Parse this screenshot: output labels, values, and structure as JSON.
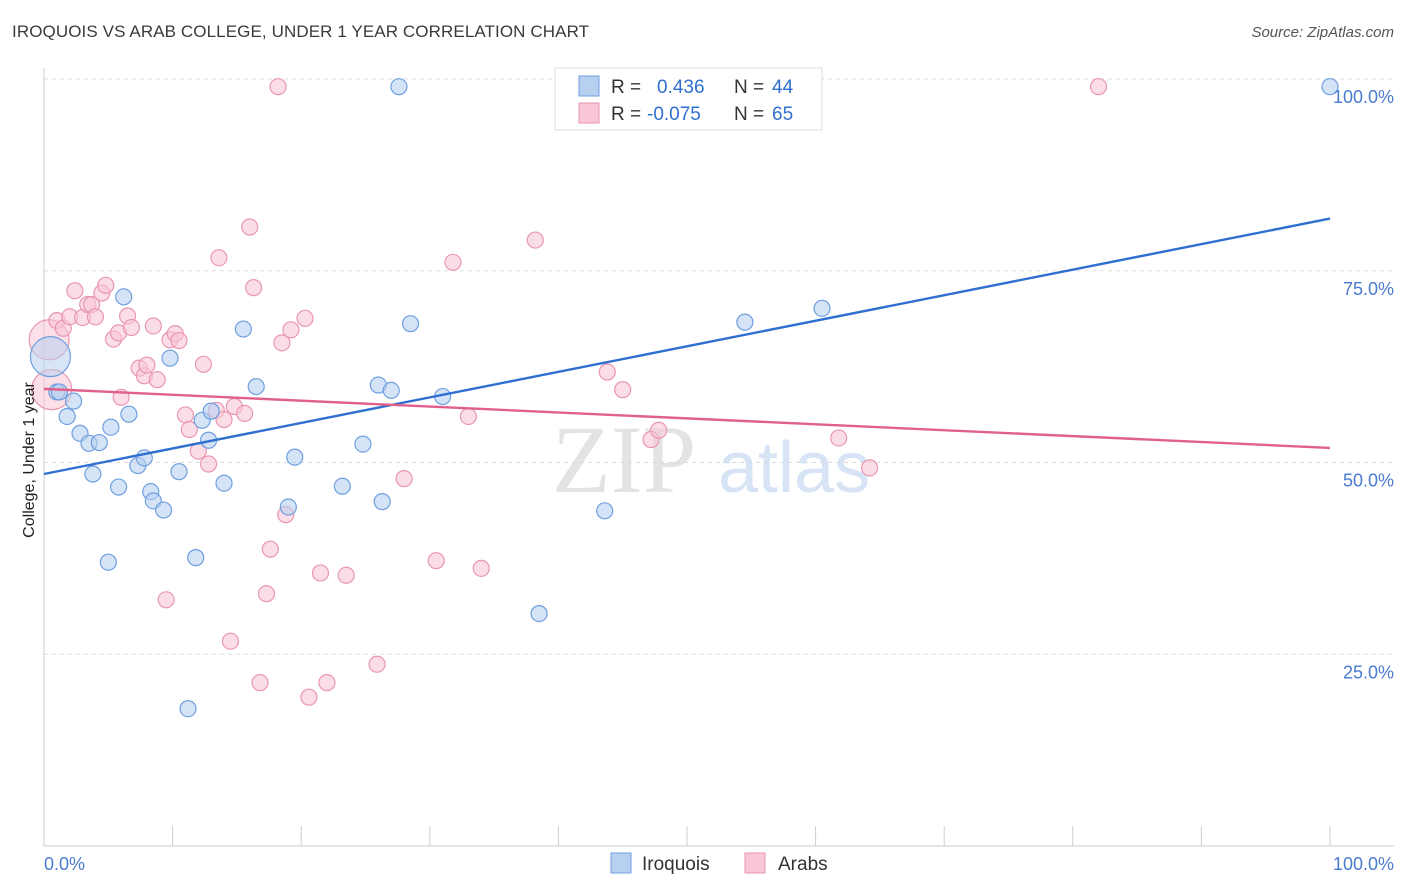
{
  "title": "IROQUOIS VS ARAB COLLEGE, UNDER 1 YEAR CORRELATION CHART",
  "source": "Source: ZipAtlas.com",
  "watermark": {
    "zip": "ZIP",
    "atlas": "atlas"
  },
  "colors": {
    "iroquois_fill": "#b8d0f0",
    "iroquois_stroke": "#6f9fe0",
    "iroquois_line": "#2f6fd0",
    "arabs_fill": "#f8c6d6",
    "arabs_stroke": "#e996b2",
    "arabs_line": "#e0608a",
    "grid": "#dddddd",
    "tick_text": "#4a7bd0"
  },
  "legend": {
    "rows": [
      {
        "r_label": "R =",
        "r_value": "0.436",
        "n_label": "N =",
        "n_value": "44",
        "series": "iroquois"
      },
      {
        "r_label": "R =",
        "r_value": "-0.075",
        "n_label": "N =",
        "n_value": "65",
        "series": "arabs"
      }
    ]
  },
  "bottom_legend": [
    "Iroquois",
    "Arabs"
  ],
  "chart_data": {
    "type": "scatter",
    "title": "IROQUOIS VS ARAB COLLEGE, UNDER 1 YEAR CORRELATION CHART",
    "xlabel": "",
    "ylabel": "College, Under 1 year",
    "xlim": [
      0,
      100
    ],
    "ylim": [
      0,
      100
    ],
    "x_tick_labels": [
      "0.0%",
      "100.0%"
    ],
    "y_tick_labels": [
      "25.0%",
      "50.0%",
      "75.0%",
      "100.0%"
    ],
    "y_ticks": [
      25,
      50,
      75,
      100
    ],
    "grid": true,
    "series": [
      {
        "name": "Iroquois",
        "r": 0.436,
        "n": 44,
        "trend": {
          "x": [
            0,
            100
          ],
          "y": [
            48.5,
            81.8
          ]
        },
        "points": [
          {
            "x": 0.5,
            "y": 63.8,
            "big": true
          },
          {
            "x": 1.0,
            "y": 59.2
          },
          {
            "x": 1.8,
            "y": 56.0
          },
          {
            "x": 2.3,
            "y": 58.0
          },
          {
            "x": 2.8,
            "y": 53.8
          },
          {
            "x": 3.5,
            "y": 52.5
          },
          {
            "x": 3.8,
            "y": 48.5
          },
          {
            "x": 4.3,
            "y": 52.6
          },
          {
            "x": 5.2,
            "y": 54.6
          },
          {
            "x": 5.8,
            "y": 46.8
          },
          {
            "x": 6.2,
            "y": 71.6
          },
          {
            "x": 6.6,
            "y": 56.3
          },
          {
            "x": 7.3,
            "y": 49.6
          },
          {
            "x": 7.8,
            "y": 50.6
          },
          {
            "x": 8.3,
            "y": 46.2
          },
          {
            "x": 8.5,
            "y": 45.0
          },
          {
            "x": 9.3,
            "y": 43.8
          },
          {
            "x": 9.8,
            "y": 63.6
          },
          {
            "x": 10.5,
            "y": 48.8
          },
          {
            "x": 11.8,
            "y": 37.6
          },
          {
            "x": 12.3,
            "y": 55.5
          },
          {
            "x": 12.8,
            "y": 52.9
          },
          {
            "x": 13.0,
            "y": 56.7
          },
          {
            "x": 14.0,
            "y": 47.3
          },
          {
            "x": 15.5,
            "y": 67.4
          },
          {
            "x": 16.5,
            "y": 59.9
          },
          {
            "x": 19.0,
            "y": 44.2
          },
          {
            "x": 19.5,
            "y": 50.7
          },
          {
            "x": 23.2,
            "y": 46.9
          },
          {
            "x": 24.8,
            "y": 52.4
          },
          {
            "x": 26.0,
            "y": 60.1
          },
          {
            "x": 26.3,
            "y": 44.9
          },
          {
            "x": 27.0,
            "y": 59.4
          },
          {
            "x": 27.6,
            "y": 99.0
          },
          {
            "x": 28.5,
            "y": 68.1
          },
          {
            "x": 31.0,
            "y": 58.6
          },
          {
            "x": 38.5,
            "y": 30.3
          },
          {
            "x": 43.6,
            "y": 43.7
          },
          {
            "x": 54.5,
            "y": 68.3
          },
          {
            "x": 60.5,
            "y": 70.1
          },
          {
            "x": 100.0,
            "y": 99.0
          },
          {
            "x": 11.2,
            "y": 17.9
          },
          {
            "x": 5.0,
            "y": 37.0
          },
          {
            "x": 1.2,
            "y": 59.2
          }
        ]
      },
      {
        "name": "Arabs",
        "r": -0.075,
        "n": 65,
        "trend": {
          "x": [
            0,
            100
          ],
          "y": [
            59.6,
            51.9
          ]
        },
        "points": [
          {
            "x": 0.4,
            "y": 66.0,
            "big": true
          },
          {
            "x": 0.6,
            "y": 59.5,
            "big": true
          },
          {
            "x": 1.0,
            "y": 68.5
          },
          {
            "x": 1.5,
            "y": 67.5
          },
          {
            "x": 2.0,
            "y": 69.0
          },
          {
            "x": 2.4,
            "y": 72.4
          },
          {
            "x": 3.0,
            "y": 68.9
          },
          {
            "x": 3.4,
            "y": 70.6
          },
          {
            "x": 3.7,
            "y": 70.6
          },
          {
            "x": 4.0,
            "y": 69.0
          },
          {
            "x": 4.5,
            "y": 72.1
          },
          {
            "x": 4.8,
            "y": 73.1
          },
          {
            "x": 5.4,
            "y": 66.1
          },
          {
            "x": 5.8,
            "y": 66.9
          },
          {
            "x": 6.0,
            "y": 58.5
          },
          {
            "x": 6.5,
            "y": 69.1
          },
          {
            "x": 6.8,
            "y": 67.6
          },
          {
            "x": 7.4,
            "y": 62.3
          },
          {
            "x": 7.8,
            "y": 61.3
          },
          {
            "x": 8.0,
            "y": 62.7
          },
          {
            "x": 8.5,
            "y": 67.8
          },
          {
            "x": 8.8,
            "y": 60.8
          },
          {
            "x": 9.5,
            "y": 32.1
          },
          {
            "x": 9.8,
            "y": 66.0
          },
          {
            "x": 10.2,
            "y": 66.8
          },
          {
            "x": 10.5,
            "y": 65.9
          },
          {
            "x": 11.0,
            "y": 56.2
          },
          {
            "x": 11.3,
            "y": 54.3
          },
          {
            "x": 12.0,
            "y": 51.5
          },
          {
            "x": 12.4,
            "y": 62.8
          },
          {
            "x": 12.8,
            "y": 49.8
          },
          {
            "x": 13.4,
            "y": 56.8
          },
          {
            "x": 13.6,
            "y": 76.7
          },
          {
            "x": 14.0,
            "y": 55.6
          },
          {
            "x": 14.5,
            "y": 26.7
          },
          {
            "x": 14.8,
            "y": 57.3
          },
          {
            "x": 15.6,
            "y": 56.4
          },
          {
            "x": 16.0,
            "y": 80.7
          },
          {
            "x": 16.3,
            "y": 72.8
          },
          {
            "x": 16.8,
            "y": 21.3
          },
          {
            "x": 17.3,
            "y": 32.9
          },
          {
            "x": 17.6,
            "y": 38.7
          },
          {
            "x": 18.2,
            "y": 99.0
          },
          {
            "x": 18.5,
            "y": 65.6
          },
          {
            "x": 18.8,
            "y": 43.2
          },
          {
            "x": 19.2,
            "y": 67.3
          },
          {
            "x": 20.3,
            "y": 68.8
          },
          {
            "x": 20.6,
            "y": 19.4
          },
          {
            "x": 21.5,
            "y": 35.6
          },
          {
            "x": 22.0,
            "y": 21.3
          },
          {
            "x": 23.5,
            "y": 35.3
          },
          {
            "x": 25.9,
            "y": 23.7
          },
          {
            "x": 28.0,
            "y": 47.9
          },
          {
            "x": 30.5,
            "y": 37.2
          },
          {
            "x": 31.8,
            "y": 76.1
          },
          {
            "x": 33.0,
            "y": 56.0
          },
          {
            "x": 34.0,
            "y": 36.2
          },
          {
            "x": 38.2,
            "y": 79.0
          },
          {
            "x": 43.8,
            "y": 61.8
          },
          {
            "x": 45.0,
            "y": 59.5
          },
          {
            "x": 47.2,
            "y": 53.0
          },
          {
            "x": 47.8,
            "y": 54.2
          },
          {
            "x": 61.8,
            "y": 53.2
          },
          {
            "x": 64.2,
            "y": 49.3
          },
          {
            "x": 82.0,
            "y": 99.0
          }
        ]
      }
    ]
  }
}
